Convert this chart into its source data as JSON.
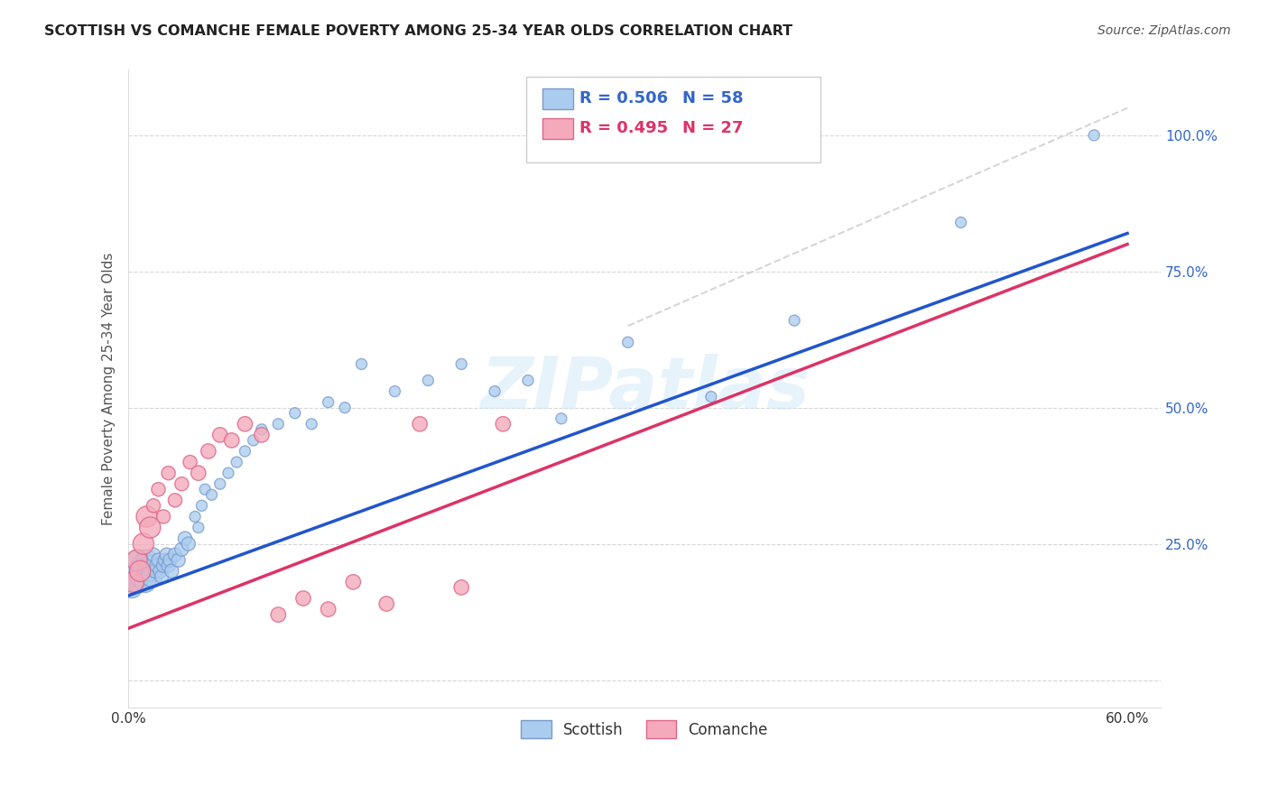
{
  "title": "SCOTTISH VS COMANCHE FEMALE POVERTY AMONG 25-34 YEAR OLDS CORRELATION CHART",
  "source": "Source: ZipAtlas.com",
  "ylabel": "Female Poverty Among 25-34 Year Olds",
  "xlim": [
    0.0,
    0.62
  ],
  "ylim": [
    -0.05,
    1.12
  ],
  "xtick_positions": [
    0.0,
    0.1,
    0.2,
    0.3,
    0.4,
    0.5,
    0.6
  ],
  "xtick_labels": [
    "0.0%",
    "",
    "",
    "",
    "",
    "",
    "60.0%"
  ],
  "ytick_positions": [
    0.0,
    0.25,
    0.5,
    0.75,
    1.0
  ],
  "ytick_labels": [
    "",
    "25.0%",
    "50.0%",
    "75.0%",
    "100.0%"
  ],
  "legend_r1": "0.506",
  "legend_n1": "58",
  "legend_r2": "0.495",
  "legend_n2": "27",
  "legend_label1": "Scottish",
  "legend_label2": "Comanche",
  "watermark": "ZIPatlas",
  "scottish_color": "#aaccee",
  "scottish_edge": "#7799cc",
  "comanche_color": "#f4aabb",
  "comanche_edge": "#dd6688",
  "trendline_scottish": "#2255cc",
  "trendline_comanche": "#dd3366",
  "trendline_dashed": "#cccccc",
  "background_color": "#ffffff",
  "grid_color": "#cccccc",
  "scottish_points_x": [
    0.002,
    0.003,
    0.004,
    0.005,
    0.006,
    0.007,
    0.008,
    0.009,
    0.01,
    0.011,
    0.012,
    0.013,
    0.014,
    0.015,
    0.016,
    0.017,
    0.018,
    0.019,
    0.02,
    0.021,
    0.022,
    0.023,
    0.024,
    0.025,
    0.026,
    0.028,
    0.03,
    0.032,
    0.034,
    0.036,
    0.04,
    0.042,
    0.044,
    0.046,
    0.05,
    0.055,
    0.06,
    0.065,
    0.07,
    0.075,
    0.08,
    0.09,
    0.1,
    0.11,
    0.12,
    0.13,
    0.14,
    0.16,
    0.18,
    0.2,
    0.22,
    0.24,
    0.26,
    0.3,
    0.35,
    0.4,
    0.5,
    0.58
  ],
  "scottish_points_y": [
    0.17,
    0.19,
    0.2,
    0.18,
    0.22,
    0.19,
    0.21,
    0.2,
    0.18,
    0.22,
    0.2,
    0.21,
    0.19,
    0.23,
    0.2,
    0.21,
    0.22,
    0.2,
    0.19,
    0.21,
    0.22,
    0.23,
    0.21,
    0.22,
    0.2,
    0.23,
    0.22,
    0.24,
    0.26,
    0.25,
    0.3,
    0.28,
    0.32,
    0.35,
    0.34,
    0.36,
    0.38,
    0.4,
    0.42,
    0.44,
    0.46,
    0.47,
    0.49,
    0.47,
    0.51,
    0.5,
    0.58,
    0.53,
    0.55,
    0.58,
    0.53,
    0.55,
    0.48,
    0.62,
    0.52,
    0.66,
    0.84,
    1.0
  ],
  "comanche_points_x": [
    0.003,
    0.005,
    0.007,
    0.009,
    0.011,
    0.013,
    0.015,
    0.018,
    0.021,
    0.024,
    0.028,
    0.032,
    0.037,
    0.042,
    0.048,
    0.055,
    0.062,
    0.07,
    0.08,
    0.09,
    0.105,
    0.12,
    0.135,
    0.155,
    0.175,
    0.2,
    0.225
  ],
  "comanche_points_y": [
    0.18,
    0.22,
    0.2,
    0.25,
    0.3,
    0.28,
    0.32,
    0.35,
    0.3,
    0.38,
    0.33,
    0.36,
    0.4,
    0.38,
    0.42,
    0.45,
    0.44,
    0.47,
    0.45,
    0.12,
    0.15,
    0.13,
    0.18,
    0.14,
    0.47,
    0.17,
    0.47
  ],
  "scottish_trendline_x0": 0.0,
  "scottish_trendline_y0": 0.155,
  "scottish_trendline_x1": 0.6,
  "scottish_trendline_y1": 0.82,
  "comanche_trendline_x0": 0.0,
  "comanche_trendline_y0": 0.095,
  "comanche_trendline_x1": 0.6,
  "comanche_trendline_y1": 0.8,
  "dashed_trendline_x0": 0.3,
  "dashed_trendline_y0": 0.65,
  "dashed_trendline_x1": 0.6,
  "dashed_trendline_y1": 1.05
}
